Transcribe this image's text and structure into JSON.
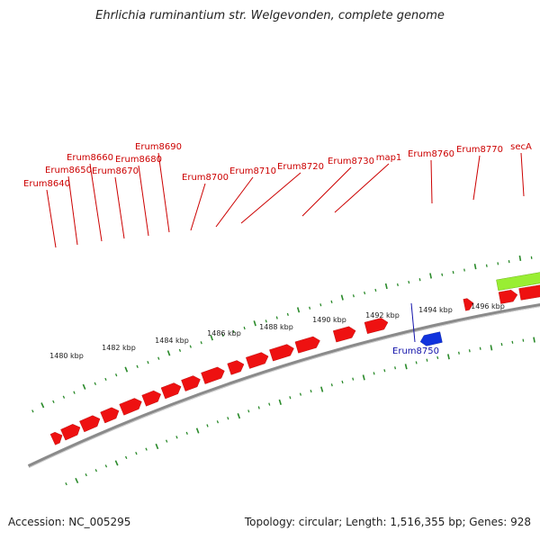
{
  "title": "Ehrlichia ruminantium str. Welgevonden, complete genome",
  "footer": {
    "accession": "Accession: NC_005295",
    "summary": "Topology: circular; Length: 1,516,355 bp; Genes: 928"
  },
  "colors": {
    "forward_gene": "#ee1111",
    "reverse_gene": "#1133dd",
    "rna_feature": "#99ee33",
    "tick": "#2a8a2a",
    "backbone": "#8a8a8a",
    "forward_label": "#cc0000",
    "reverse_label": "#1111aa"
  },
  "scale_labels": [
    "1480 kbp",
    "1482 kbp",
    "1484 kbp",
    "1486 kbp",
    "1488 kbp",
    "1490 kbp",
    "1492 kbp",
    "1494 kbp",
    "1496 kbp"
  ],
  "forward_gene_labels": [
    "Erum8640",
    "Erum8650",
    "Erum8660",
    "Erum8670",
    "Erum8680",
    "Erum8690",
    "Erum8700",
    "Erum8710",
    "Erum8720",
    "Erum8730",
    "map1",
    "Erum8760",
    "Erum8770",
    "secA"
  ],
  "reverse_gene_labels": [
    "Erum8750"
  ]
}
